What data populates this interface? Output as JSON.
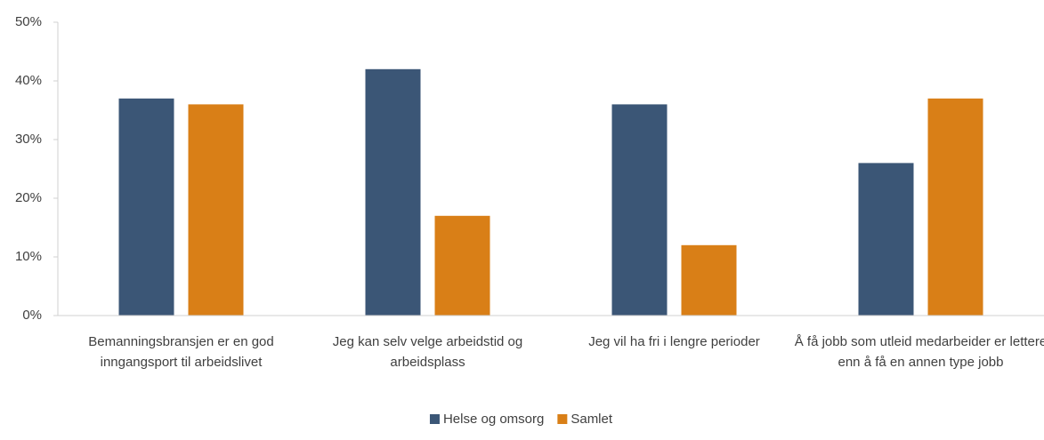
{
  "chart_data": {
    "type": "bar",
    "categories": [
      "Bemanningsbransjen er en god inngangsport til arbeidslivet",
      "Jeg kan selv velge arbeidstid og arbeidsplass",
      "Jeg vil ha fri i lengre perioder",
      "Å få jobb som utleid medarbeider er lettere enn å få en annen type jobb"
    ],
    "series": [
      {
        "name": "Helse og omsorg",
        "color": "#3b5676",
        "values": [
          37,
          42,
          36,
          26
        ]
      },
      {
        "name": "Samlet",
        "color": "#d97f17",
        "values": [
          36,
          17,
          12,
          37
        ]
      }
    ],
    "ylim": [
      0,
      50
    ],
    "yticks": [
      {
        "value": 0,
        "label": "0%"
      },
      {
        "value": 10,
        "label": "10%"
      },
      {
        "value": 20,
        "label": "20%"
      },
      {
        "value": 30,
        "label": "30%"
      },
      {
        "value": 40,
        "label": "40%"
      },
      {
        "value": 50,
        "label": "50%"
      }
    ],
    "grid": false,
    "legend": "bottom"
  }
}
